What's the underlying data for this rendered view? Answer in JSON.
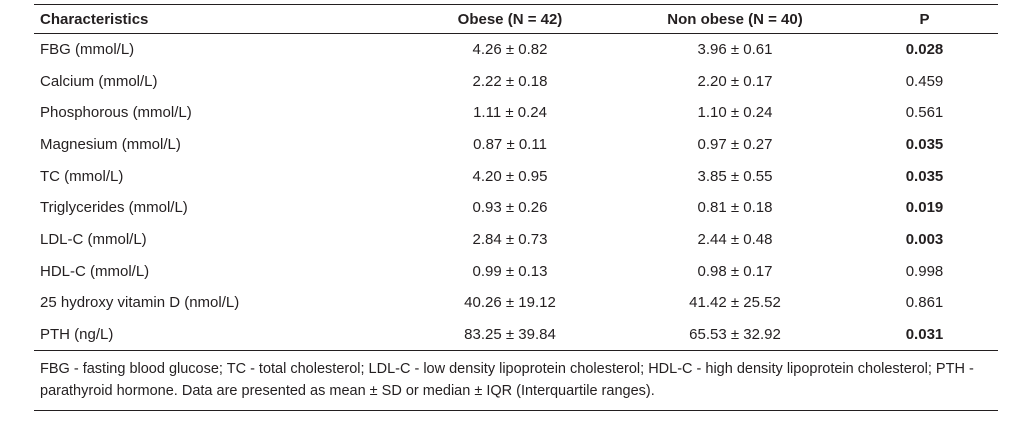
{
  "table": {
    "headers": [
      "Characteristics",
      "Obese (N = 42)",
      "Non obese (N = 40)",
      "P"
    ],
    "rows": [
      {
        "label": "FBG (mmol/L)",
        "obese": "4.26 ± 0.82",
        "non_obese": "3.96 ± 0.61",
        "p": "0.028",
        "significant": true
      },
      {
        "label": "Calcium (mmol/L)",
        "obese": "2.22 ± 0.18",
        "non_obese": "2.20 ± 0.17",
        "p": "0.459",
        "significant": false
      },
      {
        "label": "Phosphorous (mmol/L)",
        "obese": "1.11 ± 0.24",
        "non_obese": "1.10 ± 0.24",
        "p": "0.561",
        "significant": false
      },
      {
        "label": "Magnesium (mmol/L)",
        "obese": "0.87 ± 0.11",
        "non_obese": "0.97 ± 0.27",
        "p": "0.035",
        "significant": true
      },
      {
        "label": "TC (mmol/L)",
        "obese": "4.20 ± 0.95",
        "non_obese": "3.85 ± 0.55",
        "p": "0.035",
        "significant": true
      },
      {
        "label": "Triglycerides (mmol/L)",
        "obese": "0.93 ± 0.26",
        "non_obese": "0.81 ± 0.18",
        "p": "0.019",
        "significant": true
      },
      {
        "label": "LDL-C (mmol/L)",
        "obese": "2.84 ± 0.73",
        "non_obese": "2.44 ± 0.48",
        "p": "0.003",
        "significant": true
      },
      {
        "label": "HDL-C (mmol/L)",
        "obese": "0.99 ± 0.13",
        "non_obese": "0.98 ± 0.17",
        "p": "0.998",
        "significant": false
      },
      {
        "label": "25 hydroxy vitamin D (nmol/L)",
        "obese": "40.26 ± 19.12",
        "non_obese": "41.42 ± 25.52",
        "p": "0.861",
        "significant": false
      },
      {
        "label": "PTH (ng/L)",
        "obese": "83.25 ± 39.84",
        "non_obese": "65.53 ± 32.92",
        "p": "0.031",
        "significant": true
      }
    ],
    "footnote": "FBG - fasting blood glucose; TC - total cholesterol; LDL-C - low density lipoprotein cholesterol; HDL-C - high density lipoprotein cholesterol; PTH - parathyroid hormone. Data are presented as mean ± SD or median ± IQR (Interquartile ranges)."
  },
  "colors": {
    "text": "#231f20",
    "rule": "#231f20",
    "background": "#ffffff"
  }
}
